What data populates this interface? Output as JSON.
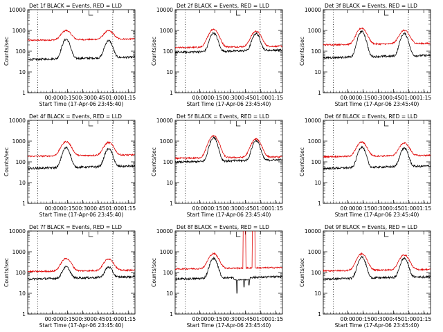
{
  "panel_title_suffix": "BLACK = Events, RED = LLD",
  "ylabel": "Counts/sec",
  "xlabel": "Start Time (17-Apr-06 23:45:40)",
  "colors": {
    "events": "#000000",
    "lld": "#e00000"
  },
  "chart_data": [
    {
      "type": "line",
      "title": "Det 1f BLACK = Events, RED = LLD",
      "yscale": "log",
      "ylim": [
        1,
        10000
      ],
      "yticks": [
        {
          "v": 1,
          "label": "1"
        },
        {
          "v": 10,
          "label": "10"
        },
        {
          "v": 100,
          "label": "100"
        },
        {
          "v": 1000,
          "label": "1000"
        },
        {
          "v": 10000,
          "label": "10000"
        }
      ],
      "xrange_min": [
        -10,
        96
      ],
      "xticks_min": [
        14.33,
        29.33,
        44.33,
        59.33,
        74.33,
        89.33
      ],
      "xtick_labels": [
        "00:00",
        "00:15",
        "00:30",
        "00:45",
        "01:00",
        "01:15"
      ],
      "vlines_min": [
        0,
        74
      ],
      "series": [
        {
          "role": "events",
          "base": 45,
          "peaks": [
            {
              "t": 28,
              "amp": 380,
              "w": 3
            },
            {
              "t": 70,
              "amp": 320,
              "w": 3
            }
          ]
        },
        {
          "role": "lld",
          "base": 360,
          "peaks": [
            {
              "t": 28,
              "amp": 1000,
              "w": 4
            },
            {
              "t": 70,
              "amp": 950,
              "w": 4
            }
          ]
        }
      ]
    },
    {
      "type": "line",
      "title": "Det 2f BLACK = Events, RED = LLD",
      "yscale": "log",
      "ylim": [
        1,
        10000
      ],
      "yticks": [
        {
          "v": 1,
          "label": "1"
        },
        {
          "v": 10,
          "label": "10"
        },
        {
          "v": 100,
          "label": "100"
        },
        {
          "v": 1000,
          "label": "1000"
        },
        {
          "v": 10000,
          "label": "10000"
        }
      ],
      "xrange_min": [
        -10,
        96
      ],
      "xticks_min": [
        14.33,
        29.33,
        44.33,
        59.33,
        74.33,
        89.33
      ],
      "xtick_labels": [
        "00:00",
        "00:15",
        "00:30",
        "00:45",
        "01:00",
        "01:15"
      ],
      "vlines_min": [
        0,
        74
      ],
      "series": [
        {
          "role": "events",
          "base": 100,
          "peaks": [
            {
              "t": 28,
              "amp": 750,
              "w": 3
            },
            {
              "t": 70,
              "amp": 700,
              "w": 3
            }
          ]
        },
        {
          "role": "lld",
          "base": 160,
          "peaks": [
            {
              "t": 28,
              "amp": 1150,
              "w": 4
            },
            {
              "t": 70,
              "amp": 900,
              "w": 4
            }
          ]
        }
      ]
    },
    {
      "type": "line",
      "title": "Det 3f BLACK = Events, RED = LLD",
      "yscale": "log",
      "ylim": [
        1,
        10000
      ],
      "yticks": [
        {
          "v": 1,
          "label": "1"
        },
        {
          "v": 10,
          "label": "10"
        },
        {
          "v": 100,
          "label": "100"
        },
        {
          "v": 1000,
          "label": "1000"
        },
        {
          "v": 10000,
          "label": "10000"
        }
      ],
      "xrange_min": [
        -10,
        96
      ],
      "xticks_min": [
        14.33,
        29.33,
        44.33,
        59.33,
        74.33,
        89.33
      ],
      "xtick_labels": [
        "00:00",
        "00:15",
        "00:30",
        "00:45",
        "01:00",
        "01:15"
      ],
      "vlines_min": [
        0,
        74
      ],
      "series": [
        {
          "role": "events",
          "base": 55,
          "peaks": [
            {
              "t": 28,
              "amp": 900,
              "w": 3
            },
            {
              "t": 70,
              "amp": 700,
              "w": 3
            }
          ]
        },
        {
          "role": "lld",
          "base": 220,
          "peaks": [
            {
              "t": 28,
              "amp": 1300,
              "w": 4
            },
            {
              "t": 70,
              "amp": 1000,
              "w": 4
            }
          ]
        }
      ]
    },
    {
      "type": "line",
      "title": "Det 4f BLACK = Events, RED = LLD",
      "yscale": "log",
      "ylim": [
        1,
        10000
      ],
      "yticks": [
        {
          "v": 1,
          "label": "1"
        },
        {
          "v": 10,
          "label": "10"
        },
        {
          "v": 100,
          "label": "100"
        },
        {
          "v": 1000,
          "label": "1000"
        },
        {
          "v": 10000,
          "label": "10000"
        }
      ],
      "xrange_min": [
        -10,
        96
      ],
      "xticks_min": [
        14.33,
        29.33,
        44.33,
        59.33,
        74.33,
        89.33
      ],
      "xtick_labels": [
        "00:00",
        "00:15",
        "00:30",
        "00:45",
        "01:00",
        "01:15"
      ],
      "vlines_min": [
        0,
        74
      ],
      "series": [
        {
          "role": "events",
          "base": 55,
          "peaks": [
            {
              "t": 28,
              "amp": 480,
              "w": 3
            },
            {
              "t": 70,
              "amp": 420,
              "w": 3
            }
          ]
        },
        {
          "role": "lld",
          "base": 200,
          "peaks": [
            {
              "t": 28,
              "amp": 950,
              "w": 4
            },
            {
              "t": 70,
              "amp": 850,
              "w": 4
            }
          ]
        }
      ]
    },
    {
      "type": "line",
      "title": "Det 5f BLACK = Events, RED = LLD",
      "yscale": "log",
      "ylim": [
        1,
        10000
      ],
      "yticks": [
        {
          "v": 1,
          "label": "1"
        },
        {
          "v": 10,
          "label": "10"
        },
        {
          "v": 100,
          "label": "100"
        },
        {
          "v": 1000,
          "label": "1000"
        },
        {
          "v": 10000,
          "label": "10000"
        }
      ],
      "xrange_min": [
        -10,
        96
      ],
      "xticks_min": [
        14.33,
        29.33,
        44.33,
        59.33,
        74.33,
        89.33
      ],
      "xtick_labels": [
        "00:00",
        "00:15",
        "00:30",
        "00:45",
        "01:00",
        "01:15"
      ],
      "vlines_min": [
        0,
        74
      ],
      "series": [
        {
          "role": "events",
          "base": 110,
          "peaks": [
            {
              "t": 28,
              "amp": 1500,
              "w": 3
            },
            {
              "t": 70,
              "amp": 1050,
              "w": 3
            }
          ]
        },
        {
          "role": "lld",
          "base": 160,
          "peaks": [
            {
              "t": 28,
              "amp": 1800,
              "w": 4
            },
            {
              "t": 70,
              "amp": 1250,
              "w": 4
            }
          ]
        }
      ]
    },
    {
      "type": "line",
      "title": "Det 6f BLACK = Events, RED = LLD",
      "yscale": "log",
      "ylim": [
        1,
        10000
      ],
      "yticks": [
        {
          "v": 1,
          "label": "1"
        },
        {
          "v": 10,
          "label": "10"
        },
        {
          "v": 100,
          "label": "100"
        },
        {
          "v": 1000,
          "label": "1000"
        },
        {
          "v": 10000,
          "label": "10000"
        }
      ],
      "xrange_min": [
        -10,
        96
      ],
      "xticks_min": [
        14.33,
        29.33,
        44.33,
        59.33,
        74.33,
        89.33
      ],
      "xtick_labels": [
        "00:00",
        "00:15",
        "00:30",
        "00:45",
        "01:00",
        "01:15"
      ],
      "vlines_min": [
        0,
        74
      ],
      "series": [
        {
          "role": "events",
          "base": 55,
          "peaks": [
            {
              "t": 28,
              "amp": 520,
              "w": 3
            },
            {
              "t": 70,
              "amp": 450,
              "w": 3
            }
          ]
        },
        {
          "role": "lld",
          "base": 190,
          "peaks": [
            {
              "t": 28,
              "amp": 900,
              "w": 4
            },
            {
              "t": 70,
              "amp": 800,
              "w": 4
            }
          ]
        }
      ]
    },
    {
      "type": "line",
      "title": "Det 7f BLACK = Events, RED = LLD",
      "yscale": "log",
      "ylim": [
        1,
        10000
      ],
      "yticks": [
        {
          "v": 1,
          "label": "1"
        },
        {
          "v": 10,
          "label": "10"
        },
        {
          "v": 100,
          "label": "100"
        },
        {
          "v": 1000,
          "label": "1000"
        },
        {
          "v": 10000,
          "label": "10000"
        }
      ],
      "xrange_min": [
        -10,
        96
      ],
      "xticks_min": [
        14.33,
        29.33,
        44.33,
        59.33,
        74.33,
        89.33
      ],
      "xtick_labels": [
        "00:00",
        "00:15",
        "00:30",
        "00:45",
        "01:00",
        "01:15"
      ],
      "vlines_min": [
        0,
        74
      ],
      "series": [
        {
          "role": "events",
          "base": 55,
          "peaks": [
            {
              "t": 28,
              "amp": 190,
              "w": 3
            },
            {
              "t": 70,
              "amp": 180,
              "w": 3
            }
          ]
        },
        {
          "role": "lld",
          "base": 120,
          "peaks": [
            {
              "t": 28,
              "amp": 480,
              "w": 4
            },
            {
              "t": 70,
              "amp": 450,
              "w": 4
            }
          ]
        }
      ]
    },
    {
      "type": "line",
      "title": "Det 8f BLACK = Events, RED = LLD",
      "yscale": "log",
      "ylim": [
        1,
        10000
      ],
      "yticks": [
        {
          "v": 1,
          "label": "1"
        },
        {
          "v": 10,
          "label": "10"
        },
        {
          "v": 100,
          "label": "100"
        },
        {
          "v": 1000,
          "label": "1000"
        },
        {
          "v": 10000,
          "label": "10000"
        }
      ],
      "xrange_min": [
        -10,
        96
      ],
      "xticks_min": [
        14.33,
        29.33,
        44.33,
        59.33,
        74.33,
        89.33
      ],
      "xtick_labels": [
        "00:00",
        "00:15",
        "00:30",
        "00:45",
        "01:00",
        "01:15"
      ],
      "vlines_min": [
        0,
        74
      ],
      "series": [
        {
          "role": "events",
          "base": 55,
          "peaks": [
            {
              "t": 28,
              "amp": 480,
              "w": 3
            }
          ],
          "gap": [
            48,
            64
          ],
          "gap_value": 45,
          "dips": [
            {
              "t": 51,
              "v": 10
            },
            {
              "t": 58,
              "v": 20
            },
            {
              "t": 63,
              "v": 25
            }
          ]
        },
        {
          "role": "lld",
          "base": 160,
          "peaks": [
            {
              "t": 28,
              "amp": 820,
              "w": 4
            }
          ],
          "spikes": [
            [
              57,
              60
            ],
            [
              66,
              69
            ]
          ],
          "spike_top": 12000
        }
      ]
    },
    {
      "type": "line",
      "title": "Det 9f BLACK = Events, RED = LLD",
      "yscale": "log",
      "ylim": [
        1,
        10000
      ],
      "yticks": [
        {
          "v": 1,
          "label": "1"
        },
        {
          "v": 10,
          "label": "10"
        },
        {
          "v": 100,
          "label": "100"
        },
        {
          "v": 1000,
          "label": "1000"
        },
        {
          "v": 10000,
          "label": "10000"
        }
      ],
      "xrange_min": [
        -10,
        96
      ],
      "xticks_min": [
        14.33,
        29.33,
        44.33,
        59.33,
        74.33,
        89.33
      ],
      "xtick_labels": [
        "00:00",
        "00:15",
        "00:30",
        "00:45",
        "01:00",
        "01:15"
      ],
      "vlines_min": [
        0,
        74
      ],
      "series": [
        {
          "role": "events",
          "base": 55,
          "peaks": [
            {
              "t": 28,
              "amp": 560,
              "w": 3
            },
            {
              "t": 70,
              "amp": 480,
              "w": 3
            }
          ]
        },
        {
          "role": "lld",
          "base": 130,
          "peaks": [
            {
              "t": 28,
              "amp": 800,
              "w": 4
            },
            {
              "t": 70,
              "amp": 700,
              "w": 4
            }
          ]
        }
      ]
    }
  ]
}
